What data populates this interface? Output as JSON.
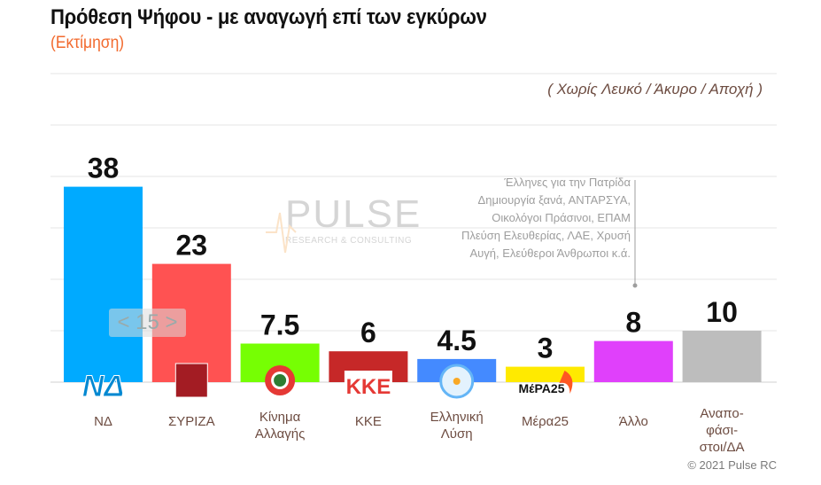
{
  "chart_data": {
    "type": "bar",
    "title": "Πρόθεση Ψήφου - με αναγωγή επί των εγκύρων",
    "subtitle": "(Εκτίμηση)",
    "note": "( Χωρίς Λευκό / Άκυρο / Αποχή )",
    "categories": [
      "ΝΔ",
      "ΣΥΡΙΖΑ",
      "Κίνημα Αλλαγής",
      "ΚΚΕ",
      "Ελληνική Λύση",
      "Μέρα25",
      "Άλλο",
      "Αναπο-φάσι-στοι/ΔΑ"
    ],
    "category_lines": [
      [
        "ΝΔ"
      ],
      [
        "ΣΥΡΙΖΑ"
      ],
      [
        "Κίνημα",
        "Αλλαγής"
      ],
      [
        "ΚΚΕ"
      ],
      [
        "Ελληνική",
        "Λύση"
      ],
      [
        "Μέρα25"
      ],
      [
        "Άλλο"
      ],
      [
        "Αναπο-",
        "φάσι-",
        "στοι/ΔΑ"
      ]
    ],
    "values": [
      38,
      23,
      7.5,
      6,
      4.5,
      3,
      8,
      10
    ],
    "value_labels": [
      "38",
      "23",
      "7.5",
      "6",
      "4.5",
      "3",
      "8",
      "10"
    ],
    "colors": [
      "#00aaff",
      "#ff5252",
      "#76ff03",
      "#c62828",
      "#448aff",
      "#ffea00",
      "#e040fb",
      "#bdbdbd"
    ],
    "logos": [
      "ΝΔ",
      "",
      "",
      "ΚΚΕ",
      "",
      "ΜέΡΑ25",
      "",
      ""
    ],
    "ylim": [
      0,
      60
    ],
    "grid": true,
    "lead_annotation": "< 15 >",
    "other_annotation": [
      "Έλληνες για την Πατρίδα",
      "Δημιουργία ξανά, ΑΝΤΑΡΣΥΑ,",
      "Οικολόγοι Πράσινοι, ΕΠΑΜ",
      "Πλεύση Ελευθερίας, ΛΑΕ, Χρυσή",
      "Αυγή, Ελεύθεροι Άνθρωποι κ.ά."
    ],
    "watermark": {
      "name": "PULSE",
      "tagline": "RESEARCH & CONSULTING"
    },
    "copyright": "© 2021 Pulse RC"
  }
}
